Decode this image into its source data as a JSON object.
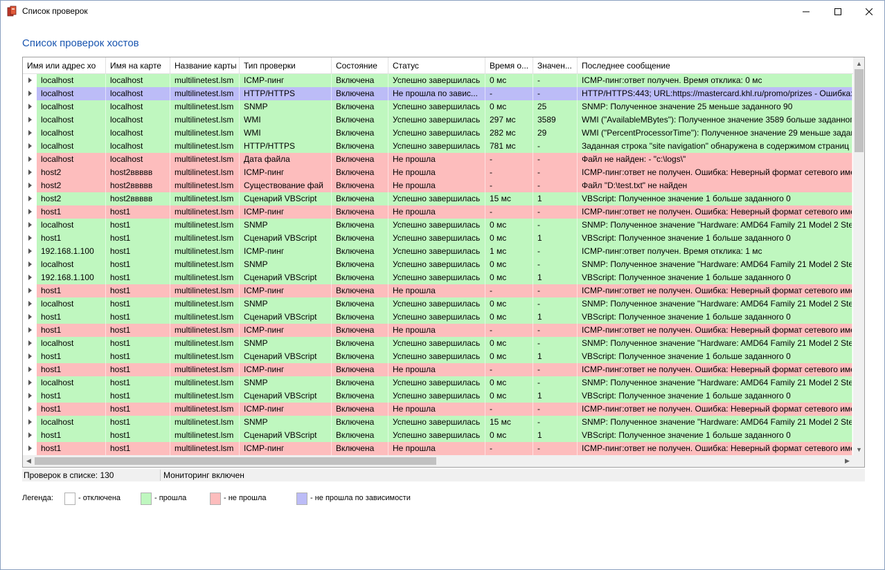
{
  "window": {
    "title": "Список проверок"
  },
  "heading": "Список проверок хостов",
  "colors": {
    "ok": "#bff7bf",
    "fail": "#fdbdbd",
    "dependency": "#bcbcf7",
    "disabled": "#ffffff",
    "heading": "#1a56b0"
  },
  "columns": [
    "Имя или адрес хо",
    "Имя на карте",
    "Название карты",
    "Тип проверки",
    "Состояние",
    "Статус",
    "Время о...",
    "Значен...",
    "Последнее сообщение"
  ],
  "rows": [
    {
      "status_type": "ok",
      "cells": [
        "localhost",
        "localhost",
        "multilinetest.lsm",
        "ICMP-пинг",
        "Включена",
        "Успешно завершилась",
        "0 мс",
        "-",
        "ICMP-пинг:ответ получен. Время отклика: 0 мс"
      ]
    },
    {
      "status_type": "dep",
      "cells": [
        "localhost",
        "localhost",
        "multilinetest.lsm",
        "HTTP/HTTPS",
        "Включена",
        "Не прошла по завис...",
        "-",
        "-",
        "HTTP/HTTPS:443; URL:https://mastercard.khl.ru/promo/prizes - Ошибка:"
      ]
    },
    {
      "status_type": "ok",
      "cells": [
        "localhost",
        "localhost",
        "multilinetest.lsm",
        "SNMP",
        "Включена",
        "Успешно завершилась",
        "0 мс",
        "25",
        "SNMP: Полученное значение 25 меньше заданного 90"
      ]
    },
    {
      "status_type": "ok",
      "cells": [
        "localhost",
        "localhost",
        "multilinetest.lsm",
        "WMI",
        "Включена",
        "Успешно завершилась",
        "297 мс",
        "3589",
        "WMI (\"AvailableMBytes\"): Полученное значение 3589 больше заданного"
      ]
    },
    {
      "status_type": "ok",
      "cells": [
        "localhost",
        "localhost",
        "multilinetest.lsm",
        "WMI",
        "Включена",
        "Успешно завершилась",
        "282 мс",
        "29",
        "WMI (\"PercentProcessorTime\"): Полученное значение 29 меньше задан"
      ]
    },
    {
      "status_type": "ok",
      "cells": [
        "localhost",
        "localhost",
        "multilinetest.lsm",
        "HTTP/HTTPS",
        "Включена",
        "Успешно завершилась",
        "781 мс",
        "-",
        "Заданная строка \"site navigation\" обнаружена в содержимом страниц"
      ]
    },
    {
      "status_type": "fail",
      "cells": [
        "localhost",
        "localhost",
        "multilinetest.lsm",
        "Дата файла",
        "Включена",
        "Не прошла",
        "-",
        "-",
        "Файл не найден: - \"c:\\logs\\\""
      ]
    },
    {
      "status_type": "fail",
      "cells": [
        "host2",
        "host2ввввв",
        "multilinetest.lsm",
        "ICMP-пинг",
        "Включена",
        "Не прошла",
        "-",
        "-",
        "ICMP-пинг:ответ не получен. Ошибка: Неверный формат сетевого име"
      ]
    },
    {
      "status_type": "fail",
      "cells": [
        "host2",
        "host2ввввв",
        "multilinetest.lsm",
        "Существование фай",
        "Включена",
        "Не прошла",
        "-",
        "-",
        "Файл \"D:\\test.txt\" не найден"
      ]
    },
    {
      "status_type": "ok",
      "cells": [
        "host2",
        "host2ввввв",
        "multilinetest.lsm",
        "Сценарий VBScript",
        "Включена",
        "Успешно завершилась",
        "15 мс",
        "1",
        "VBScript: Полученное значение 1 больше заданного 0"
      ]
    },
    {
      "status_type": "fail",
      "cells": [
        "host1",
        "host1",
        "multilinetest.lsm",
        "ICMP-пинг",
        "Включена",
        "Не прошла",
        "-",
        "-",
        "ICMP-пинг:ответ не получен. Ошибка: Неверный формат сетевого име"
      ]
    },
    {
      "status_type": "ok",
      "cells": [
        "localhost",
        "host1",
        "multilinetest.lsm",
        "SNMP",
        "Включена",
        "Успешно завершилась",
        "0 мс",
        "-",
        "SNMP: Полученное значение \"Hardware: AMD64 Family 21 Model 2 Step"
      ]
    },
    {
      "status_type": "ok",
      "cells": [
        "host1",
        "host1",
        "multilinetest.lsm",
        "Сценарий VBScript",
        "Включена",
        "Успешно завершилась",
        "0 мс",
        "1",
        "VBScript: Полученное значение 1 больше заданного 0"
      ]
    },
    {
      "status_type": "ok",
      "cells": [
        "192.168.1.100",
        "host1",
        "multilinetest.lsm",
        "ICMP-пинг",
        "Включена",
        "Успешно завершилась",
        "1 мс",
        "-",
        "ICMP-пинг:ответ получен. Время отклика: 1 мс"
      ]
    },
    {
      "status_type": "ok",
      "cells": [
        "localhost",
        "host1",
        "multilinetest.lsm",
        "SNMP",
        "Включена",
        "Успешно завершилась",
        "0 мс",
        "-",
        "SNMP: Полученное значение \"Hardware: AMD64 Family 21 Model 2 Step"
      ]
    },
    {
      "status_type": "ok",
      "cells": [
        "192.168.1.100",
        "host1",
        "multilinetest.lsm",
        "Сценарий VBScript",
        "Включена",
        "Успешно завершилась",
        "0 мс",
        "1",
        "VBScript: Полученное значение 1 больше заданного 0"
      ]
    },
    {
      "status_type": "fail",
      "cells": [
        "host1",
        "host1",
        "multilinetest.lsm",
        "ICMP-пинг",
        "Включена",
        "Не прошла",
        "-",
        "-",
        "ICMP-пинг:ответ не получен. Ошибка: Неверный формат сетевого име"
      ]
    },
    {
      "status_type": "ok",
      "cells": [
        "localhost",
        "host1",
        "multilinetest.lsm",
        "SNMP",
        "Включена",
        "Успешно завершилась",
        "0 мс",
        "-",
        "SNMP: Полученное значение \"Hardware: AMD64 Family 21 Model 2 Step"
      ]
    },
    {
      "status_type": "ok",
      "cells": [
        "host1",
        "host1",
        "multilinetest.lsm",
        "Сценарий VBScript",
        "Включена",
        "Успешно завершилась",
        "0 мс",
        "1",
        "VBScript: Полученное значение 1 больше заданного 0"
      ]
    },
    {
      "status_type": "fail",
      "cells": [
        "host1",
        "host1",
        "multilinetest.lsm",
        "ICMP-пинг",
        "Включена",
        "Не прошла",
        "-",
        "-",
        "ICMP-пинг:ответ не получен. Ошибка: Неверный формат сетевого име"
      ]
    },
    {
      "status_type": "ok",
      "cells": [
        "localhost",
        "host1",
        "multilinetest.lsm",
        "SNMP",
        "Включена",
        "Успешно завершилась",
        "0 мс",
        "-",
        "SNMP: Полученное значение \"Hardware: AMD64 Family 21 Model 2 Step"
      ]
    },
    {
      "status_type": "ok",
      "cells": [
        "host1",
        "host1",
        "multilinetest.lsm",
        "Сценарий VBScript",
        "Включена",
        "Успешно завершилась",
        "0 мс",
        "1",
        "VBScript: Полученное значение 1 больше заданного 0"
      ]
    },
    {
      "status_type": "fail",
      "cells": [
        "host1",
        "host1",
        "multilinetest.lsm",
        "ICMP-пинг",
        "Включена",
        "Не прошла",
        "-",
        "-",
        "ICMP-пинг:ответ не получен. Ошибка: Неверный формат сетевого име"
      ]
    },
    {
      "status_type": "ok",
      "cells": [
        "localhost",
        "host1",
        "multilinetest.lsm",
        "SNMP",
        "Включена",
        "Успешно завершилась",
        "0 мс",
        "-",
        "SNMP: Полученное значение \"Hardware: AMD64 Family 21 Model 2 Step"
      ]
    },
    {
      "status_type": "ok",
      "cells": [
        "host1",
        "host1",
        "multilinetest.lsm",
        "Сценарий VBScript",
        "Включена",
        "Успешно завершилась",
        "0 мс",
        "1",
        "VBScript: Полученное значение 1 больше заданного 0"
      ]
    },
    {
      "status_type": "fail",
      "cells": [
        "host1",
        "host1",
        "multilinetest.lsm",
        "ICMP-пинг",
        "Включена",
        "Не прошла",
        "-",
        "-",
        "ICMP-пинг:ответ не получен. Ошибка: Неверный формат сетевого име"
      ]
    },
    {
      "status_type": "ok",
      "cells": [
        "localhost",
        "host1",
        "multilinetest.lsm",
        "SNMP",
        "Включена",
        "Успешно завершилась",
        "15 мс",
        "-",
        "SNMP: Полученное значение \"Hardware: AMD64 Family 21 Model 2 Step"
      ]
    },
    {
      "status_type": "ok",
      "cells": [
        "host1",
        "host1",
        "multilinetest.lsm",
        "Сценарий VBScript",
        "Включена",
        "Успешно завершилась",
        "0 мс",
        "1",
        "VBScript: Полученное значение 1 больше заданного 0"
      ]
    },
    {
      "status_type": "fail",
      "cells": [
        "host1",
        "host1",
        "multilinetest.lsm",
        "ICMP-пинг",
        "Включена",
        "Не прошла",
        "-",
        "-",
        "ICMP-пинг:ответ не получен. Ошибка: Неверный формат сетевого име"
      ]
    }
  ],
  "status": {
    "count_text": "Проверок в списке: 130",
    "monitoring_text": "Мониторинг включен"
  },
  "legend": {
    "title": "Легенда:",
    "items": [
      {
        "label": "- отключена",
        "color": "#ffffff"
      },
      {
        "label": "- прошла",
        "color": "#bff7bf"
      },
      {
        "label": "- не прошла",
        "color": "#fdbdbd"
      },
      {
        "label": "- не прошла по зависимости",
        "color": "#bcbcf7"
      }
    ]
  }
}
